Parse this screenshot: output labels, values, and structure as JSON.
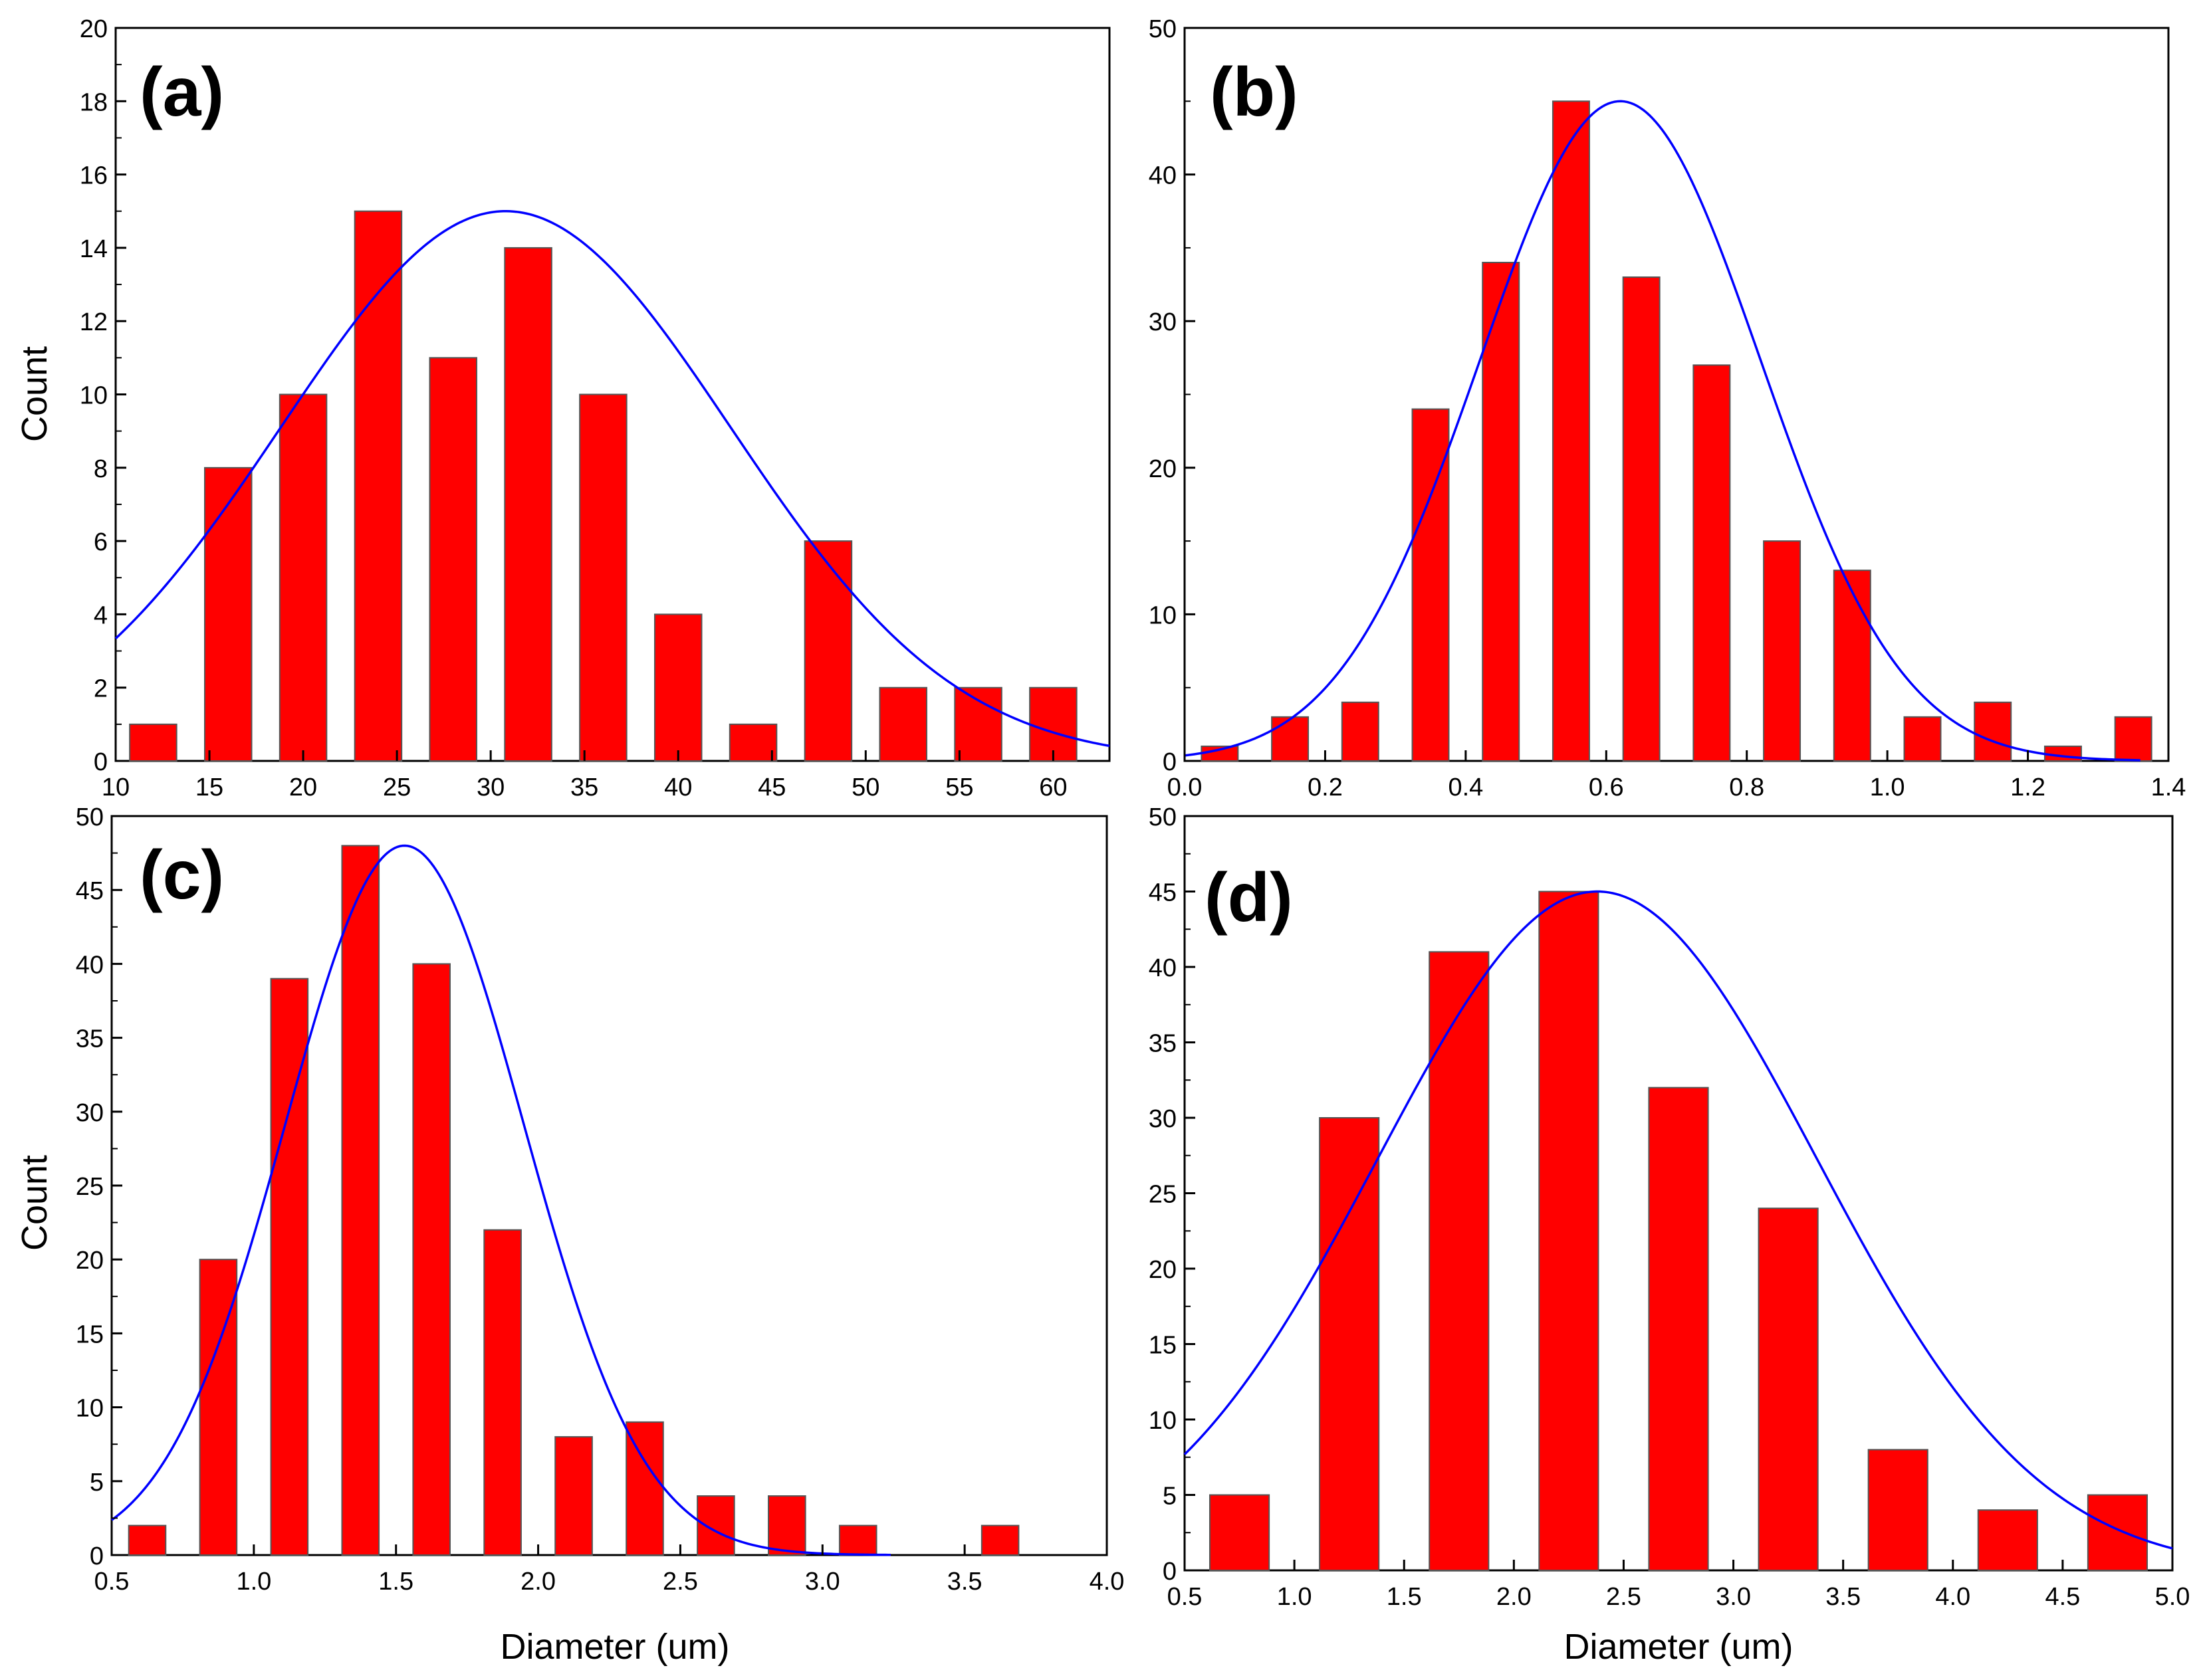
{
  "colors": {
    "bar_fill": "#ff0000",
    "bar_stroke": "#555555",
    "fit_curve": "#0000ff",
    "axis": "#000000",
    "background": "#ffffff"
  },
  "chart_data": [
    {
      "panel_label": "(a)",
      "type": "bar",
      "overlay": "gaussian-fit",
      "xlabel": "",
      "ylabel": "Count",
      "xlim": [
        10,
        63
      ],
      "ylim": [
        0,
        20
      ],
      "x_ticks": [
        10,
        15,
        20,
        25,
        30,
        35,
        40,
        45,
        50,
        55,
        60
      ],
      "y_ticks": [
        0,
        2,
        4,
        6,
        8,
        10,
        12,
        14,
        16,
        18,
        20
      ],
      "bar_width": 2.5,
      "bars": [
        {
          "x": 12,
          "value": 1
        },
        {
          "x": 16,
          "value": 8
        },
        {
          "x": 20,
          "value": 10
        },
        {
          "x": 24,
          "value": 15
        },
        {
          "x": 28,
          "value": 11
        },
        {
          "x": 32,
          "value": 14
        },
        {
          "x": 36,
          "value": 10
        },
        {
          "x": 40,
          "value": 4
        },
        {
          "x": 44,
          "value": 1
        },
        {
          "x": 48,
          "value": 6
        },
        {
          "x": 52,
          "value": 2
        },
        {
          "x": 56,
          "value": 2
        },
        {
          "x": 60,
          "value": 2
        }
      ],
      "fit": {
        "peak_x": 30.8,
        "peak_y": 15.0,
        "sigma": 12.0,
        "x_from": 10,
        "x_to": 63
      }
    },
    {
      "panel_label": "(b)",
      "type": "bar",
      "overlay": "gaussian-fit",
      "xlabel": "",
      "ylabel": "",
      "xlim": [
        0,
        1.4
      ],
      "ylim": [
        0,
        50
      ],
      "x_ticks": [
        0.0,
        0.2,
        0.4,
        0.6,
        0.8,
        1.0,
        1.2,
        1.4
      ],
      "x_tick_labels": [
        "0.0",
        "0.2",
        "0.4",
        "0.6",
        "0.8",
        "1.0",
        "1.2",
        "1.4"
      ],
      "y_ticks": [
        0,
        10,
        20,
        30,
        40,
        50
      ],
      "bar_width": 0.052,
      "bars": [
        {
          "x": 0.05,
          "value": 1
        },
        {
          "x": 0.15,
          "value": 3
        },
        {
          "x": 0.25,
          "value": 4
        },
        {
          "x": 0.35,
          "value": 24
        },
        {
          "x": 0.45,
          "value": 34
        },
        {
          "x": 0.55,
          "value": 45
        },
        {
          "x": 0.65,
          "value": 33
        },
        {
          "x": 0.75,
          "value": 27
        },
        {
          "x": 0.85,
          "value": 15
        },
        {
          "x": 0.95,
          "value": 13
        },
        {
          "x": 1.05,
          "value": 3
        },
        {
          "x": 1.15,
          "value": 4
        },
        {
          "x": 1.25,
          "value": 1
        },
        {
          "x": 1.35,
          "value": 3
        }
      ],
      "fit": {
        "peak_x": 0.62,
        "peak_y": 45.0,
        "sigma": 0.2,
        "x_from": 0.0,
        "x_to": 1.36
      }
    },
    {
      "panel_label": "(c)",
      "type": "bar",
      "overlay": "gaussian-fit",
      "xlabel": "Diameter (um)",
      "ylabel": "Count",
      "xlim": [
        0.5,
        4.0
      ],
      "ylim": [
        0,
        50
      ],
      "x_ticks": [
        0.5,
        1.0,
        1.5,
        2.0,
        2.5,
        3.0,
        3.5,
        4.0
      ],
      "x_tick_labels": [
        "0.5",
        "1.0",
        "1.5",
        "2.0",
        "2.5",
        "3.0",
        "3.5",
        "4.0"
      ],
      "y_ticks": [
        0,
        5,
        10,
        15,
        20,
        25,
        30,
        35,
        40,
        45,
        50
      ],
      "bar_width": 0.13,
      "bars": [
        {
          "x": 0.625,
          "value": 2
        },
        {
          "x": 0.875,
          "value": 20
        },
        {
          "x": 1.125,
          "value": 39
        },
        {
          "x": 1.375,
          "value": 48
        },
        {
          "x": 1.625,
          "value": 40
        },
        {
          "x": 1.875,
          "value": 22
        },
        {
          "x": 2.125,
          "value": 8
        },
        {
          "x": 2.375,
          "value": 9
        },
        {
          "x": 2.625,
          "value": 4
        },
        {
          "x": 2.875,
          "value": 4
        },
        {
          "x": 3.125,
          "value": 2
        },
        {
          "x": 3.625,
          "value": 2
        }
      ],
      "fit": {
        "peak_x": 1.53,
        "peak_y": 48.0,
        "sigma": 0.42,
        "x_from": 0.5,
        "x_to": 3.24
      }
    },
    {
      "panel_label": "(d)",
      "type": "bar",
      "overlay": "gaussian-fit",
      "xlabel": "Diameter (um)",
      "ylabel": "",
      "xlim": [
        0.5,
        5.0
      ],
      "ylim": [
        0,
        50
      ],
      "x_ticks": [
        0.5,
        1.0,
        1.5,
        2.0,
        2.5,
        3.0,
        3.5,
        4.0,
        4.5,
        5.0
      ],
      "x_tick_labels": [
        "0.5",
        "1.0",
        "1.5",
        "2.0",
        "2.5",
        "3.0",
        "3.5",
        "4.0",
        "4.5",
        "5.0"
      ],
      "y_ticks": [
        0,
        5,
        10,
        15,
        20,
        25,
        30,
        35,
        40,
        45,
        50
      ],
      "bar_width": 0.27,
      "bars": [
        {
          "x": 0.75,
          "value": 5
        },
        {
          "x": 1.25,
          "value": 30
        },
        {
          "x": 1.75,
          "value": 41
        },
        {
          "x": 2.25,
          "value": 45
        },
        {
          "x": 2.75,
          "value": 32
        },
        {
          "x": 3.25,
          "value": 24
        },
        {
          "x": 3.75,
          "value": 8
        },
        {
          "x": 4.25,
          "value": 4
        },
        {
          "x": 4.75,
          "value": 5
        }
      ],
      "fit": {
        "peak_x": 2.38,
        "peak_y": 45.0,
        "sigma": 1.0,
        "x_from": 0.5,
        "x_to": 5.0
      }
    }
  ]
}
